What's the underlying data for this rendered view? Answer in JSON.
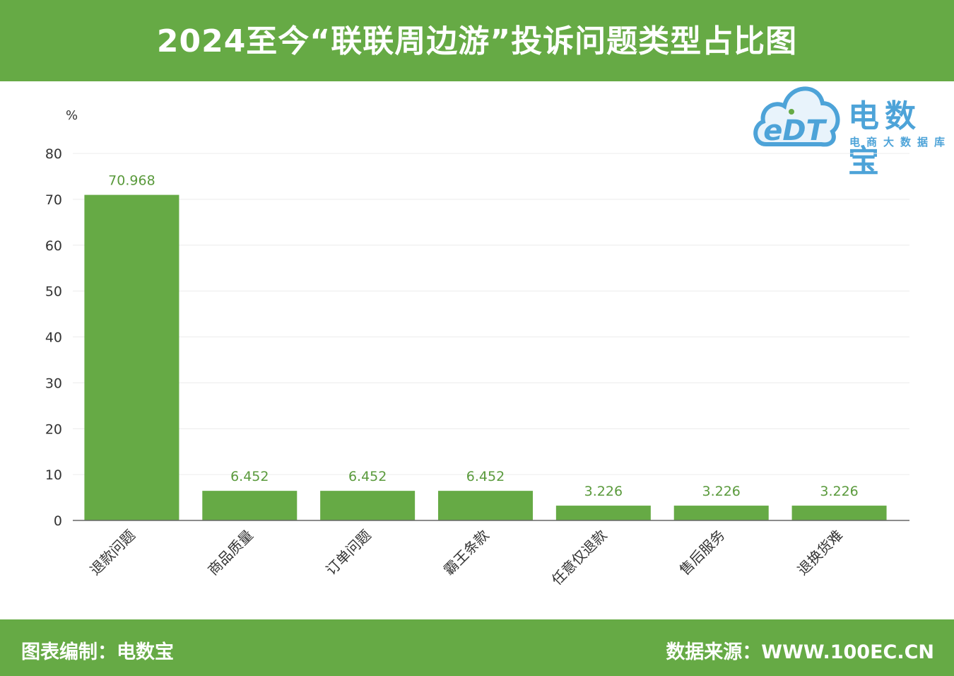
{
  "header": {
    "title": "2024至今“联联周边游”投诉问题类型占比图"
  },
  "footer": {
    "credit": "图表编制：电数宝",
    "source": "数据来源：WWW.100EC.CN"
  },
  "logo": {
    "mark": "eDT",
    "name": "电数宝",
    "subtitle": "电商大数据库"
  },
  "colors": {
    "bar": "#66aa45",
    "header": "#66aa45",
    "logo": "#4da3d8",
    "label": "#5a9a3c"
  },
  "chart_data": {
    "type": "bar",
    "ylabel": "%",
    "ylim": [
      0,
      80
    ],
    "yticks": [
      0,
      10,
      20,
      30,
      40,
      50,
      60,
      70,
      80
    ],
    "categories": [
      "退款问题",
      "商品质量",
      "订单问题",
      "霸王条款",
      "任意仅退款",
      "售后服务",
      "退换货难"
    ],
    "values": [
      70.968,
      6.452,
      6.452,
      6.452,
      3.226,
      3.226,
      3.226
    ],
    "data_labels": [
      "70.968",
      "6.452",
      "6.452",
      "6.452",
      "3.226",
      "3.226",
      "3.226"
    ],
    "grid": true,
    "legend": "none"
  }
}
